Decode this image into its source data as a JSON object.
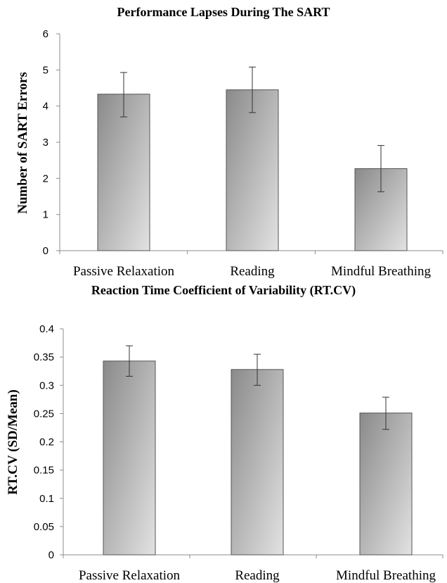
{
  "chart_data": [
    {
      "type": "bar",
      "title": "Performance Lapses During The SART",
      "ylabel": "Number of SART Errors",
      "xlabel": "",
      "categories": [
        "Passive Relaxation",
        "Reading",
        "Mindful Breathing"
      ],
      "values": [
        4.33,
        4.45,
        2.27
      ],
      "error_upper": [
        4.93,
        5.08,
        2.91
      ],
      "error_lower": [
        3.7,
        3.82,
        1.63
      ],
      "ylim": [
        0,
        6
      ],
      "yticks": [
        "0",
        "1",
        "2",
        "3",
        "4",
        "5",
        "6"
      ],
      "grid": false,
      "legend": "none"
    },
    {
      "type": "bar",
      "title": "Reaction Time Coefficient of Variability (RT.CV)",
      "ylabel": "RT.CV (SD/Mean)",
      "xlabel": "",
      "categories": [
        "Passive Relaxation",
        "Reading",
        "Mindful Breathing"
      ],
      "values": [
        0.343,
        0.328,
        0.251
      ],
      "error_upper": [
        0.37,
        0.355,
        0.279
      ],
      "error_lower": [
        0.316,
        0.3,
        0.222
      ],
      "ylim": [
        0,
        0.4
      ],
      "yticks": [
        "0",
        "0.05",
        "0.1",
        "0.15",
        "0.2",
        "0.25",
        "0.3",
        "0.35",
        "0.4"
      ],
      "grid": false,
      "legend": "none"
    }
  ],
  "colors": {
    "bar_dark": "#8a8a8a",
    "bar_light": "#e2e2e2",
    "bar_stroke": "#555555"
  }
}
